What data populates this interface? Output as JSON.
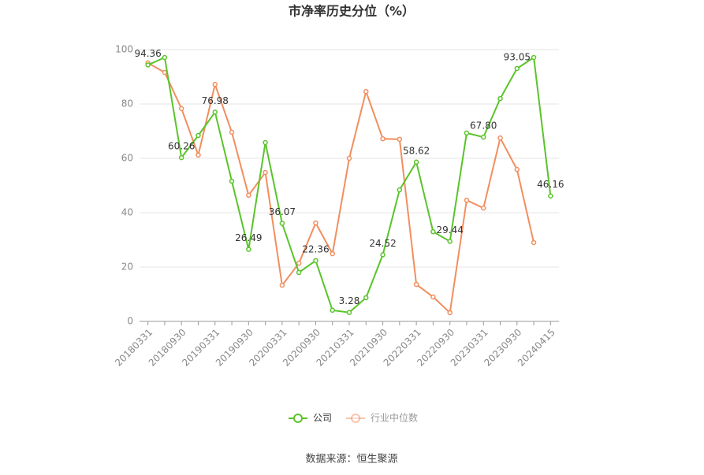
{
  "chart_data": {
    "type": "line",
    "title": "市净率历史分位（%）",
    "source": "数据来源：恒生聚源",
    "categories": [
      "20180331",
      null,
      "20180930",
      null,
      "20190331",
      null,
      "20190930",
      null,
      "20200331",
      null,
      "20200930",
      null,
      "20210331",
      null,
      "20210930",
      null,
      "20220331",
      null,
      "20220930",
      null,
      "20230331",
      null,
      "20230930",
      null,
      "20240415"
    ],
    "series": [
      {
        "name": "公司",
        "color": "#5ac42a",
        "values": [
          94.36,
          97.1,
          60.26,
          68.4,
          76.98,
          51.6,
          26.49,
          65.8,
          36.07,
          18.0,
          22.36,
          4.1,
          3.28,
          8.7,
          24.52,
          48.4,
          58.62,
          33.0,
          29.44,
          69.3,
          67.8,
          82.0,
          93.05,
          97.1,
          46.16
        ],
        "value_labels": [
          "94.36",
          null,
          "60.26",
          null,
          "76.98",
          null,
          "26.49",
          null,
          "36.07",
          null,
          "22.36",
          null,
          "3.28",
          null,
          "24.52",
          null,
          "58.62",
          null,
          "29.44",
          null,
          "67.80",
          null,
          "93.05",
          null,
          "46.16"
        ]
      },
      {
        "name": "行业中位数",
        "color": "#f28e5e",
        "values": [
          95.1,
          91.6,
          78.3,
          61.2,
          87.2,
          69.6,
          46.4,
          54.8,
          13.3,
          21.4,
          36.2,
          24.9,
          60.0,
          84.6,
          67.2,
          67.0,
          13.6,
          9.0,
          3.2,
          44.6,
          41.7,
          67.5,
          55.9,
          29.0,
          null
        ]
      }
    ],
    "ylim": [
      0,
      100
    ],
    "yticks": [
      0,
      20,
      40,
      60,
      80,
      100
    ],
    "grid": true,
    "legend": "bottom"
  }
}
